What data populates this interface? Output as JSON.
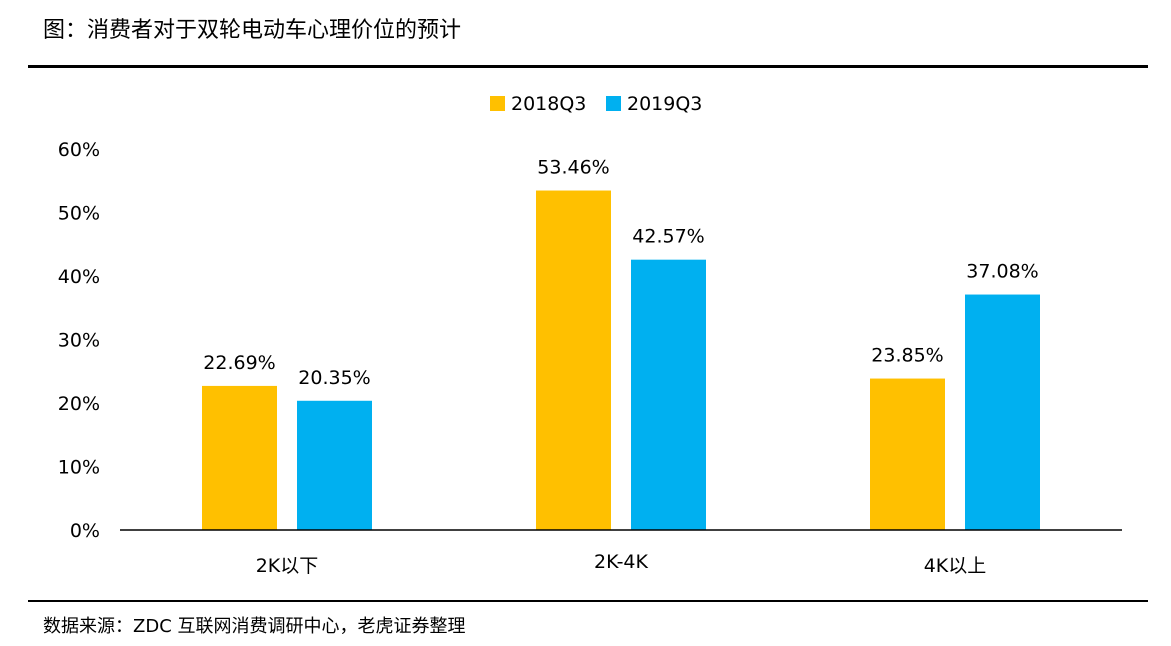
{
  "title": "图：消费者对于双轮电动车心理价位的预计",
  "source": "数据来源：ZDC 互联网消费调研中心，老虎证券整理",
  "colors": {
    "s2018": "#FFC000",
    "s2019": "#00B0F0",
    "axis": "#000000"
  },
  "chart_data": {
    "type": "bar",
    "categories": [
      "2K以下",
      "2K-4K",
      "4K以上"
    ],
    "series": [
      {
        "name": "2018Q3",
        "values": [
          22.69,
          53.46,
          23.85
        ]
      },
      {
        "name": "2019Q3",
        "values": [
          20.35,
          42.57,
          37.08
        ]
      }
    ],
    "data_labels": [
      [
        "22.69%",
        "53.46%",
        "23.85%"
      ],
      [
        "20.35%",
        "42.57%",
        "37.08%"
      ]
    ],
    "y_ticks": [
      "0%",
      "10%",
      "20%",
      "30%",
      "40%",
      "50%",
      "60%"
    ],
    "ylim": [
      0,
      60
    ],
    "xlabel": "",
    "ylabel": "",
    "grid": false,
    "legend_position": "top-center"
  }
}
